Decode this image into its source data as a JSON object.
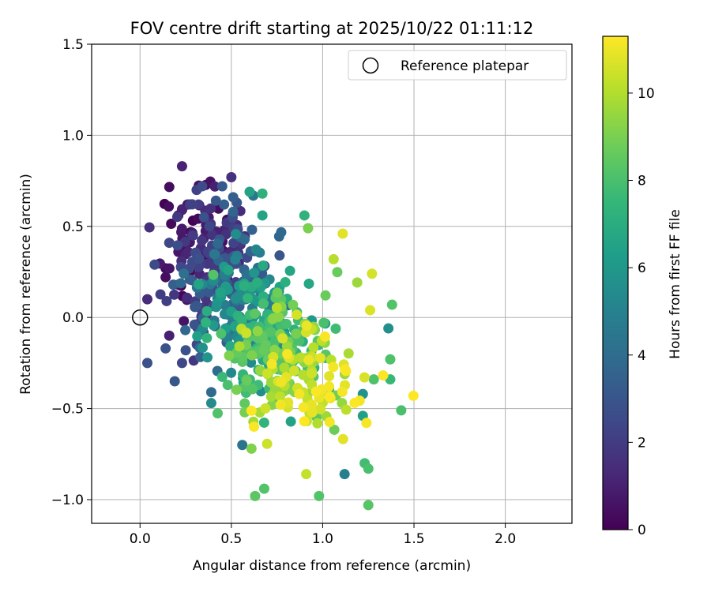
{
  "chart_data": {
    "type": "scatter",
    "title": "FOV centre drift starting at 2025/10/22 01:11:12",
    "xlabel": "Angular distance from reference (arcmin)",
    "ylabel": "Rotation from reference (arcmin)",
    "xlim": [
      -0.265,
      2.365
    ],
    "ylim": [
      -1.13,
      1.5
    ],
    "xticks": [
      0.0,
      0.5,
      1.0,
      1.5,
      2.0
    ],
    "xtick_labels": [
      "0.0",
      "0.5",
      "1.0",
      "1.5",
      "2.0"
    ],
    "yticks": [
      -1.0,
      -0.5,
      0.0,
      0.5,
      1.0,
      1.5
    ],
    "ytick_labels": [
      "−1.0",
      "−0.5",
      "0.0",
      "0.5",
      "1.0",
      "1.5"
    ],
    "grid": true,
    "legend": {
      "position": "top-right",
      "entries": [
        "Reference platepar"
      ]
    },
    "reference_point": {
      "x": 0.0,
      "y": 0.0,
      "label": "Reference platepar"
    },
    "colorbar": {
      "label": "Hours from first FF file",
      "range": [
        0,
        11.3
      ],
      "ticks": [
        0,
        2,
        4,
        6,
        8,
        10
      ],
      "tick_labels": [
        "0",
        "2",
        "4",
        "6",
        "8",
        "10"
      ],
      "colormap": "viridis",
      "colormap_stops": [
        "#440154",
        "#482878",
        "#3e4a89",
        "#31688e",
        "#26828e",
        "#1f9e89",
        "#35b779",
        "#6dcd59",
        "#b4de2c",
        "#fde725"
      ]
    },
    "generation": {
      "count": 640,
      "seed": 20251022
    },
    "series": [
      {
        "name": "FOV centre",
        "points": [
          {
            "x": 0.23,
            "y": 0.83,
            "hours": 1.1
          },
          {
            "x": 0.5,
            "y": 0.77,
            "hours": 1.6
          },
          {
            "x": 0.31,
            "y": 0.7,
            "hours": 2.2
          },
          {
            "x": 0.34,
            "y": 0.72,
            "hours": 2.6
          },
          {
            "x": 0.45,
            "y": 0.72,
            "hours": 3.2
          },
          {
            "x": 0.26,
            "y": 0.62,
            "hours": 0.6
          },
          {
            "x": 0.32,
            "y": 0.62,
            "hours": 2.0
          },
          {
            "x": 0.51,
            "y": 0.66,
            "hours": 3.4
          },
          {
            "x": 0.53,
            "y": 0.63,
            "hours": 3.0
          },
          {
            "x": 0.51,
            "y": 0.58,
            "hours": 3.6
          },
          {
            "x": 0.35,
            "y": 0.55,
            "hours": 2.8
          },
          {
            "x": 0.38,
            "y": 0.5,
            "hours": 2.4
          },
          {
            "x": 0.42,
            "y": 0.47,
            "hours": 0.8
          },
          {
            "x": 0.29,
            "y": 0.45,
            "hours": 2.0
          },
          {
            "x": 0.55,
            "y": 0.44,
            "hours": 3.8
          },
          {
            "x": 0.55,
            "y": 0.4,
            "hours": 1.3
          },
          {
            "x": 0.16,
            "y": 0.41,
            "hours": 2.4
          },
          {
            "x": 0.08,
            "y": 0.29,
            "hours": 2.6
          },
          {
            "x": 0.14,
            "y": 0.27,
            "hours": 0.4
          },
          {
            "x": 0.21,
            "y": 0.36,
            "hours": 0.7
          },
          {
            "x": 0.21,
            "y": 0.18,
            "hours": 0.5
          },
          {
            "x": 0.04,
            "y": 0.1,
            "hours": 1.4
          },
          {
            "x": 0.24,
            "y": -0.02,
            "hours": 0.6
          },
          {
            "x": 0.16,
            "y": -0.1,
            "hours": 1.0
          },
          {
            "x": 0.14,
            "y": -0.17,
            "hours": 2.8
          },
          {
            "x": 0.25,
            "y": -0.18,
            "hours": 2.8
          },
          {
            "x": 0.23,
            "y": -0.25,
            "hours": 2.4
          },
          {
            "x": 0.04,
            "y": -0.25,
            "hours": 2.8
          },
          {
            "x": 0.19,
            "y": -0.35,
            "hours": 3.0
          },
          {
            "x": 0.6,
            "y": 0.69,
            "hours": 6.5
          },
          {
            "x": 0.67,
            "y": 0.56,
            "hours": 6.6
          },
          {
            "x": 0.67,
            "y": 0.68,
            "hours": 7.2
          },
          {
            "x": 0.9,
            "y": 0.56,
            "hours": 7.3
          },
          {
            "x": 0.92,
            "y": 0.49,
            "hours": 9.0
          },
          {
            "x": 1.11,
            "y": 0.46,
            "hours": 10.8
          },
          {
            "x": 1.06,
            "y": 0.32,
            "hours": 10.1
          },
          {
            "x": 1.27,
            "y": 0.24,
            "hours": 10.6
          },
          {
            "x": 1.38,
            "y": 0.07,
            "hours": 8.2
          },
          {
            "x": 1.26,
            "y": 0.04,
            "hours": 10.7
          },
          {
            "x": 1.36,
            "y": -0.06,
            "hours": 5.6
          },
          {
            "x": 1.37,
            "y": -0.23,
            "hours": 8.1
          },
          {
            "x": 1.43,
            "y": -0.51,
            "hours": 8.0
          },
          {
            "x": 1.37,
            "y": -0.34,
            "hours": 7.6
          },
          {
            "x": 1.28,
            "y": -0.34,
            "hours": 8.1
          },
          {
            "x": 1.22,
            "y": -0.42,
            "hours": 5.8
          },
          {
            "x": 1.22,
            "y": -0.54,
            "hours": 6.4
          },
          {
            "x": 1.23,
            "y": -0.8,
            "hours": 7.8
          },
          {
            "x": 1.25,
            "y": -0.83,
            "hours": 8.0
          },
          {
            "x": 1.25,
            "y": -1.03,
            "hours": 8.3
          },
          {
            "x": 1.12,
            "y": -0.86,
            "hours": 4.9
          },
          {
            "x": 0.98,
            "y": -0.98,
            "hours": 8.2
          },
          {
            "x": 0.63,
            "y": -0.98,
            "hours": 8.4
          },
          {
            "x": 0.68,
            "y": -0.94,
            "hours": 8.2
          },
          {
            "x": 0.91,
            "y": -0.86,
            "hours": 10.3
          },
          {
            "x": 0.56,
            "y": -0.7,
            "hours": 4.3
          },
          {
            "x": 0.61,
            "y": -0.72,
            "hours": 9.1
          },
          {
            "x": 0.39,
            "y": -0.41,
            "hours": 3.9
          },
          {
            "x": 0.39,
            "y": -0.47,
            "hours": 5.4
          },
          {
            "x": 0.48,
            "y": -0.37,
            "hours": 8.0
          },
          {
            "x": 0.0,
            "y": 0.0,
            "hours": 0.0
          }
        ]
      }
    ]
  }
}
